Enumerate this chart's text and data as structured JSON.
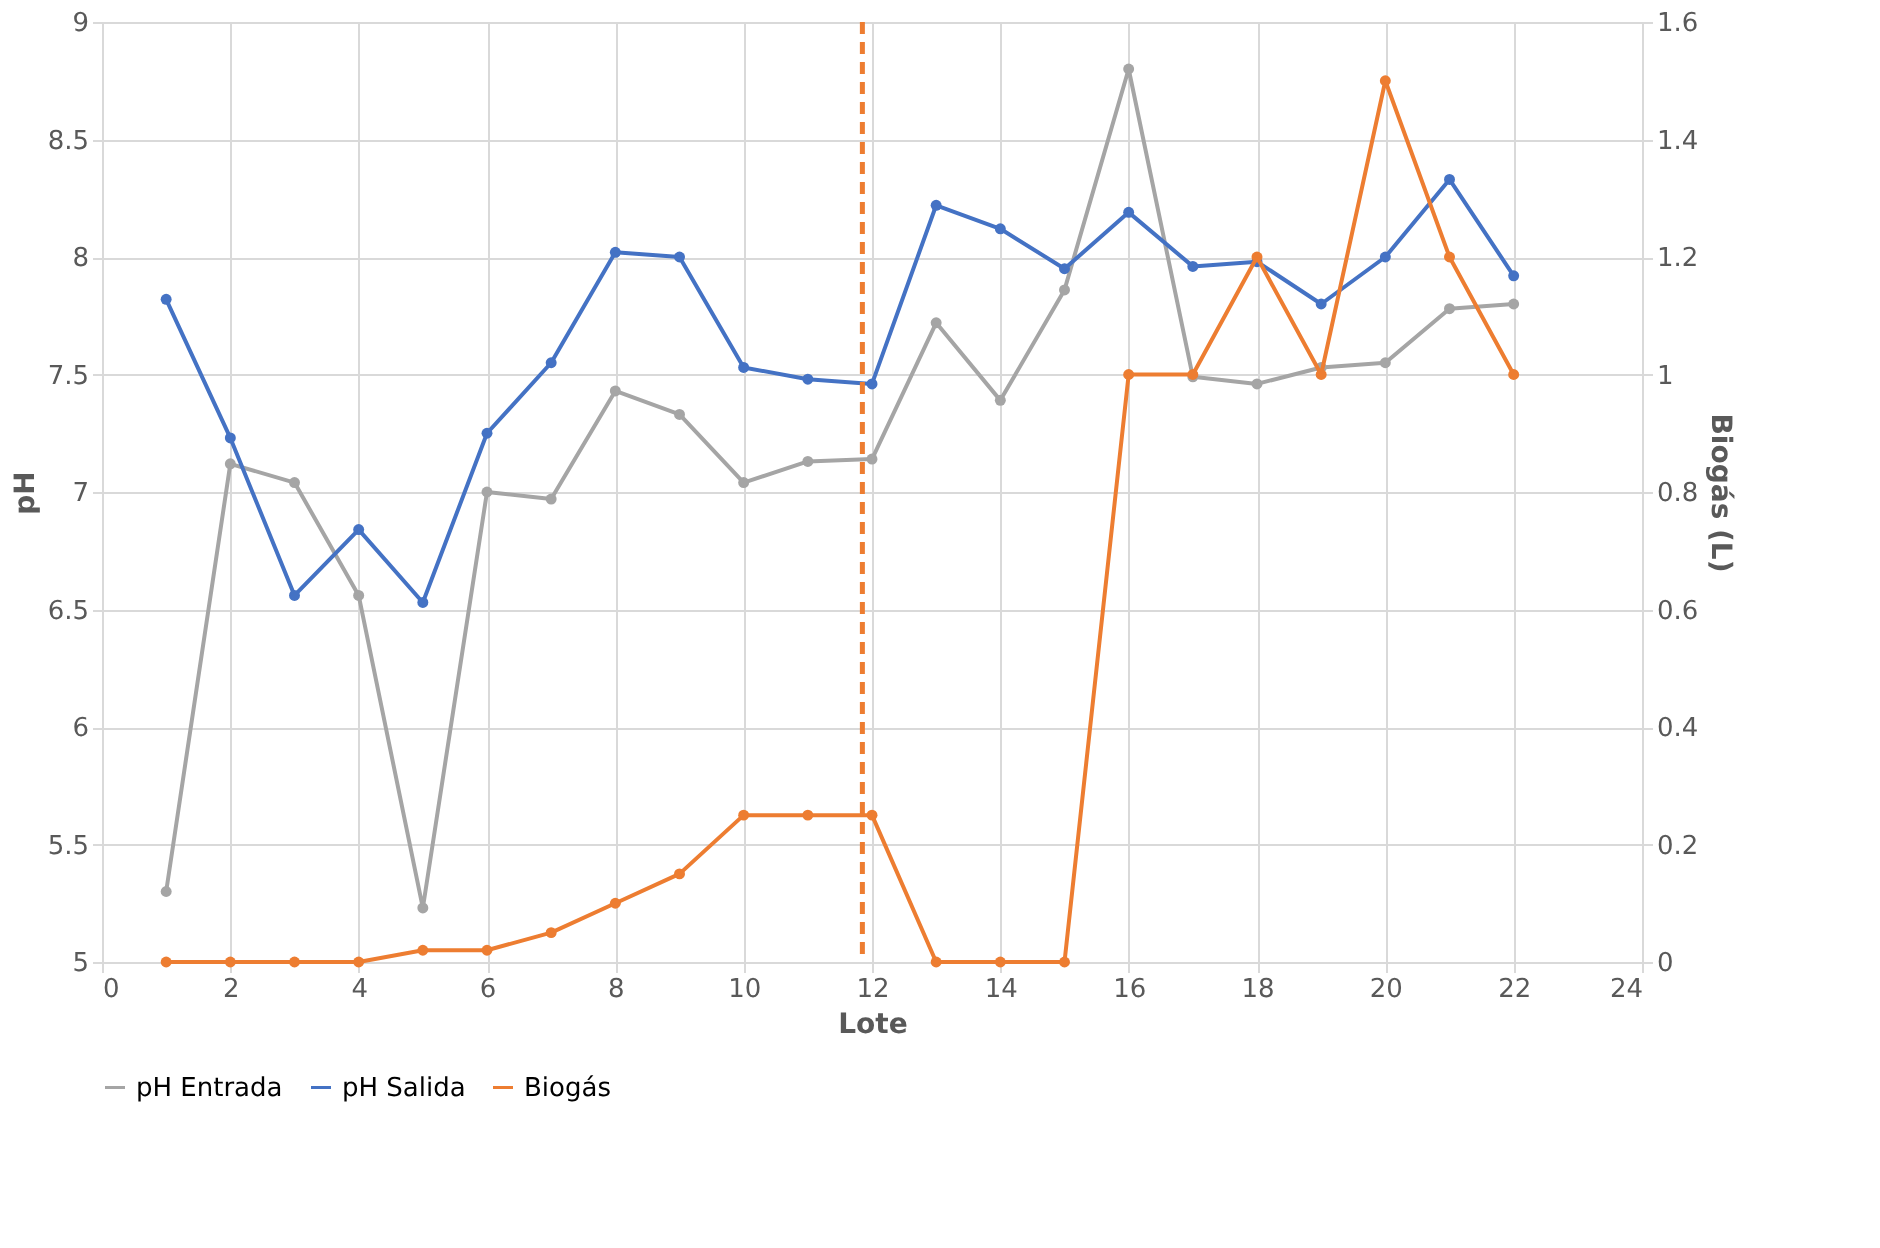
{
  "chart_data": {
    "type": "line",
    "xlabel": "Lote",
    "ylabel": "pH",
    "y2label": "Biogás (L)",
    "x": [
      1,
      2,
      3,
      4,
      5,
      6,
      7,
      8,
      9,
      10,
      11,
      12,
      13,
      14,
      15,
      16,
      17,
      18,
      19,
      20,
      21,
      22
    ],
    "series": [
      {
        "name": "pH Entrada",
        "color": "#a5a5a5",
        "values": [
          5.3,
          7.12,
          7.04,
          6.56,
          5.23,
          7.0,
          6.97,
          7.43,
          7.33,
          7.04,
          7.13,
          7.14,
          7.72,
          7.39,
          7.86,
          8.8,
          7.49,
          7.46,
          7.53,
          7.55,
          7.78,
          7.8
        ]
      },
      {
        "name": "pH Salida",
        "color": "#4472c4",
        "values": [
          7.82,
          7.23,
          6.56,
          6.84,
          6.53,
          7.25,
          7.55,
          8.02,
          8.0,
          7.53,
          7.48,
          7.46,
          8.22,
          8.12,
          7.95,
          8.19,
          7.96,
          7.98,
          7.8,
          8.0,
          8.33,
          7.92
        ]
      },
      {
        "name": "Biogás",
        "color": "#ed7d31",
        "axis": "y2",
        "values": [
          0,
          0,
          0,
          0,
          0.02,
          0.02,
          0.05,
          0.1,
          0.15,
          0.25,
          0.25,
          0.25,
          0,
          0,
          0,
          1.0,
          1.0,
          1.2,
          1.0,
          1.5,
          1.2,
          1.0
        ]
      }
    ],
    "xlim": [
      0,
      24
    ],
    "xticks": [
      0,
      2,
      4,
      6,
      8,
      10,
      12,
      14,
      16,
      18,
      20,
      22,
      24
    ],
    "ylim": [
      5,
      9
    ],
    "yticks": [
      5,
      5.5,
      6,
      6.5,
      7,
      7.5,
      8,
      8.5,
      9
    ],
    "y2lim": [
      0,
      1.6
    ],
    "y2ticks": [
      0,
      0.2,
      0.4,
      0.6,
      0.8,
      1,
      1.2,
      1.4,
      1.6
    ],
    "ref_lines": [
      {
        "axis": "x",
        "value": 11.85,
        "color": "#ed7d31",
        "line_style": "dashed"
      }
    ],
    "grid": true,
    "legend": "bottom",
    "marker": "circle"
  }
}
